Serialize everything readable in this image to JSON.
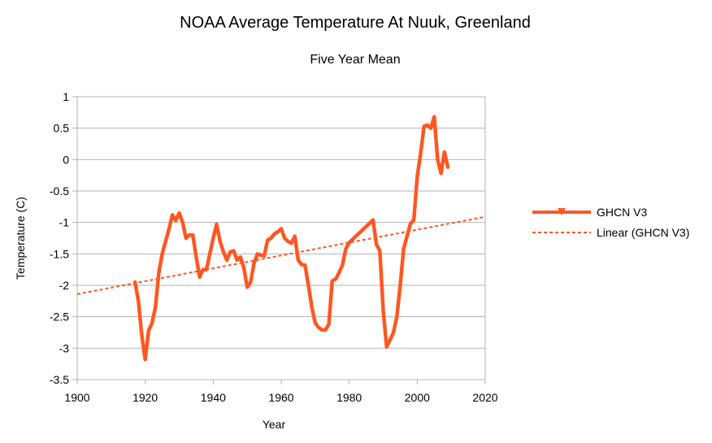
{
  "chart_data": {
    "type": "line",
    "title": "NOAA Average Temperature At Nuuk, Greenland",
    "subtitle": "Five Year Mean",
    "xlabel": "Year",
    "ylabel": "Temperature (C)",
    "xlim": [
      1900,
      2020
    ],
    "ylim": [
      -3.5,
      1
    ],
    "x_ticks": [
      1900,
      1920,
      1940,
      1960,
      1980,
      2000,
      2020
    ],
    "y_ticks": [
      1,
      0.5,
      0,
      -0.5,
      -1,
      -1.5,
      -2,
      -2.5,
      -3,
      -3.5
    ],
    "x_tick_labels": [
      "1900",
      "1920",
      "1940",
      "1960",
      "1980",
      "2000",
      "2020"
    ],
    "y_tick_labels": [
      "1",
      "0.5",
      "0",
      "-0.5",
      "-1",
      "-1.5",
      "-2",
      "-2.5",
      "-3",
      "-3.5"
    ],
    "grid": true,
    "legend_position": "right",
    "series": [
      {
        "name": "GHCN V3",
        "color": "#ff5722",
        "x": [
          1917,
          1918,
          1919,
          1920,
          1921,
          1922,
          1923,
          1924,
          1925,
          1926,
          1927,
          1928,
          1929,
          1930,
          1931,
          1932,
          1933,
          1934,
          1935,
          1936,
          1937,
          1938,
          1939,
          1940,
          1941,
          1942,
          1943,
          1944,
          1945,
          1946,
          1947,
          1948,
          1949,
          1950,
          1951,
          1952,
          1953,
          1954,
          1955,
          1956,
          1957,
          1958,
          1959,
          1960,
          1961,
          1962,
          1963,
          1964,
          1965,
          1966,
          1967,
          1968,
          1969,
          1970,
          1971,
          1972,
          1973,
          1974,
          1975,
          1976,
          1977,
          1978,
          1979,
          1980,
          1987,
          1988,
          1989,
          1990,
          1991,
          1992,
          1993,
          1994,
          1995,
          1996,
          1997,
          1998,
          1999,
          2000,
          2001,
          2002,
          2003,
          2004,
          2005,
          2006,
          2007,
          2008,
          2009
        ],
        "y": [
          -1.95,
          -2.25,
          -2.8,
          -3.18,
          -2.72,
          -2.6,
          -2.35,
          -1.8,
          -1.5,
          -1.3,
          -1.1,
          -0.88,
          -0.97,
          -0.85,
          -1.0,
          -1.25,
          -1.2,
          -1.2,
          -1.55,
          -1.87,
          -1.75,
          -1.75,
          -1.5,
          -1.25,
          -1.03,
          -1.3,
          -1.47,
          -1.6,
          -1.47,
          -1.45,
          -1.6,
          -1.55,
          -1.72,
          -2.03,
          -1.95,
          -1.65,
          -1.5,
          -1.52,
          -1.53,
          -1.28,
          -1.25,
          -1.18,
          -1.15,
          -1.1,
          -1.25,
          -1.3,
          -1.33,
          -1.22,
          -1.6,
          -1.67,
          -1.68,
          -2.0,
          -2.35,
          -2.6,
          -2.67,
          -2.71,
          -2.71,
          -2.62,
          -1.93,
          -1.9,
          -1.8,
          -1.68,
          -1.42,
          -1.32,
          -0.96,
          -1.35,
          -1.45,
          -2.4,
          -2.98,
          -2.87,
          -2.75,
          -2.5,
          -2.0,
          -1.42,
          -1.22,
          -1.02,
          -0.96,
          -0.27,
          0.1,
          0.53,
          0.55,
          0.5,
          0.68,
          0.0,
          -0.22,
          0.12,
          -0.12
        ]
      },
      {
        "name": "Linear (GHCN V3)",
        "color": "#ff5722",
        "style": "dashed",
        "x": [
          1900,
          2020
        ],
        "y": [
          -2.14,
          -0.91
        ]
      }
    ]
  }
}
